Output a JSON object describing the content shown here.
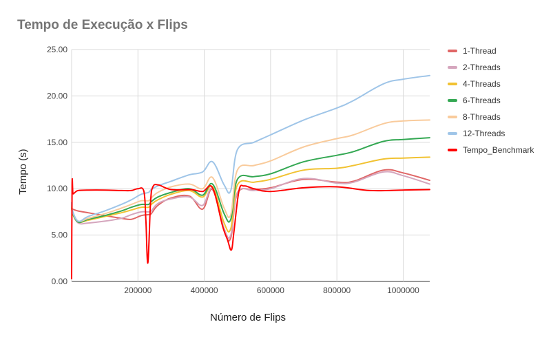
{
  "chart_data": {
    "type": "line",
    "title": "Tempo de Execução x Flips",
    "xlabel": "Número de Flips",
    "ylabel": "Tempo (s)",
    "xlim": [
      0,
      1080000
    ],
    "ylim": [
      0,
      25
    ],
    "x_ticks": [
      200000,
      400000,
      600000,
      800000,
      1000000
    ],
    "x_tick_labels": [
      "200000",
      "400000",
      "600000",
      "800000",
      "1000000"
    ],
    "y_ticks": [
      0,
      5,
      10,
      15,
      20,
      25
    ],
    "y_tick_labels": [
      "0.00",
      "5.00",
      "10.00",
      "15.00",
      "20.00",
      "25.00"
    ],
    "grid": true,
    "legend_position": "right",
    "series": [
      {
        "name": "1-Thread",
        "color": "#e06666",
        "x": [
          0,
          3000,
          20000,
          50000,
          100000,
          150000,
          180000,
          210000,
          232000,
          240000,
          260000,
          300000,
          355000,
          395000,
          425000,
          460000,
          480000,
          500000,
          550000,
          600000,
          700000,
          800000,
          850000,
          940000,
          1000000,
          1080000
        ],
        "y": [
          8.0,
          7.8,
          7.6,
          7.4,
          7.1,
          6.8,
          6.7,
          7.1,
          7.2,
          7.3,
          8.2,
          9.0,
          9.2,
          7.8,
          9.9,
          5.5,
          4.7,
          9.5,
          9.9,
          10.1,
          11.0,
          10.7,
          10.8,
          12.0,
          11.7,
          10.9
        ]
      },
      {
        "name": "2-Threads",
        "color": "#d5a6bd",
        "x": [
          0,
          3000,
          20000,
          50000,
          100000,
          150000,
          180000,
          210000,
          232000,
          240000,
          260000,
          300000,
          355000,
          395000,
          425000,
          460000,
          480000,
          500000,
          550000,
          600000,
          700000,
          800000,
          850000,
          940000,
          1000000,
          1080000
        ],
        "y": [
          8.4,
          7.4,
          6.3,
          6.3,
          6.5,
          6.8,
          7.2,
          7.5,
          7.5,
          7.6,
          8.4,
          8.9,
          9.1,
          8.2,
          10.0,
          5.7,
          5.0,
          9.6,
          9.8,
          10.0,
          11.1,
          10.6,
          10.7,
          11.8,
          11.4,
          10.5
        ]
      },
      {
        "name": "4-Threads",
        "color": "#f1c232",
        "x": [
          0,
          3000,
          20000,
          50000,
          100000,
          150000,
          180000,
          210000,
          232000,
          240000,
          260000,
          300000,
          355000,
          395000,
          425000,
          460000,
          480000,
          500000,
          550000,
          600000,
          700000,
          800000,
          850000,
          940000,
          1000000,
          1080000
        ],
        "y": [
          8.2,
          7.3,
          6.4,
          6.6,
          7.0,
          7.4,
          7.7,
          8.0,
          8.0,
          8.3,
          8.8,
          9.4,
          9.8,
          9.1,
          10.2,
          6.3,
          5.7,
          10.4,
          10.7,
          11.0,
          12.0,
          12.2,
          12.5,
          13.2,
          13.3,
          13.4
        ]
      },
      {
        "name": "6-Threads",
        "color": "#34a853",
        "x": [
          0,
          3000,
          20000,
          50000,
          100000,
          150000,
          180000,
          210000,
          232000,
          240000,
          260000,
          300000,
          355000,
          395000,
          425000,
          460000,
          480000,
          500000,
          550000,
          600000,
          700000,
          800000,
          850000,
          940000,
          1000000,
          1080000
        ],
        "y": [
          8.3,
          7.4,
          6.4,
          6.7,
          7.1,
          7.6,
          8.0,
          8.3,
          8.3,
          8.6,
          9.1,
          9.6,
          10.0,
          9.3,
          10.5,
          7.3,
          6.7,
          11.0,
          11.3,
          11.6,
          12.9,
          13.6,
          14.0,
          15.1,
          15.3,
          15.5
        ]
      },
      {
        "name": "8-Threads",
        "color": "#f9cb9c",
        "x": [
          0,
          3000,
          20000,
          50000,
          100000,
          150000,
          180000,
          210000,
          232000,
          240000,
          260000,
          300000,
          355000,
          395000,
          425000,
          460000,
          480000,
          500000,
          550000,
          600000,
          700000,
          800000,
          850000,
          940000,
          1000000,
          1080000
        ],
        "y": [
          8.4,
          7.5,
          6.5,
          6.8,
          7.3,
          7.9,
          8.3,
          8.7,
          8.7,
          9.0,
          9.6,
          10.2,
          10.5,
          10.0,
          11.2,
          7.9,
          7.2,
          12.0,
          12.5,
          13.0,
          14.5,
          15.4,
          15.8,
          17.0,
          17.3,
          17.4
        ]
      },
      {
        "name": "12-Threads",
        "color": "#9fc5e8",
        "x": [
          0,
          3000,
          20000,
          50000,
          100000,
          150000,
          180000,
          210000,
          232000,
          240000,
          260000,
          300000,
          355000,
          395000,
          425000,
          460000,
          480000,
          500000,
          550000,
          600000,
          700000,
          800000,
          850000,
          940000,
          1000000,
          1080000
        ],
        "y": [
          8.5,
          7.6,
          6.5,
          7.0,
          7.6,
          8.3,
          8.8,
          9.4,
          9.6,
          9.9,
          10.3,
          10.8,
          11.5,
          11.8,
          12.9,
          10.4,
          9.8,
          14.2,
          15.0,
          15.8,
          17.4,
          18.7,
          19.5,
          21.3,
          21.8,
          22.2
        ]
      },
      {
        "name": "Tempo_Benchmark",
        "color": "#ff0000",
        "x": [
          0,
          1500,
          4000,
          10000,
          20000,
          50000,
          100000,
          150000,
          180000,
          200000,
          218000,
          224000,
          230000,
          238000,
          245000,
          262000,
          300000,
          360000,
          395000,
          425000,
          455000,
          470000,
          482000,
          490000,
          505000,
          520000,
          550000,
          600000,
          700000,
          800000,
          900000,
          1000000,
          1080000
        ],
        "y": [
          0.3,
          10.5,
          9.5,
          9.6,
          9.8,
          9.85,
          9.85,
          9.8,
          9.8,
          10.0,
          9.7,
          6.5,
          2.0,
          8.5,
          10.2,
          10.4,
          9.9,
          9.9,
          9.7,
          10.1,
          6.0,
          4.5,
          3.4,
          5.5,
          9.8,
          10.3,
          10.0,
          9.7,
          10.1,
          10.2,
          9.8,
          9.85,
          9.9
        ]
      }
    ]
  }
}
